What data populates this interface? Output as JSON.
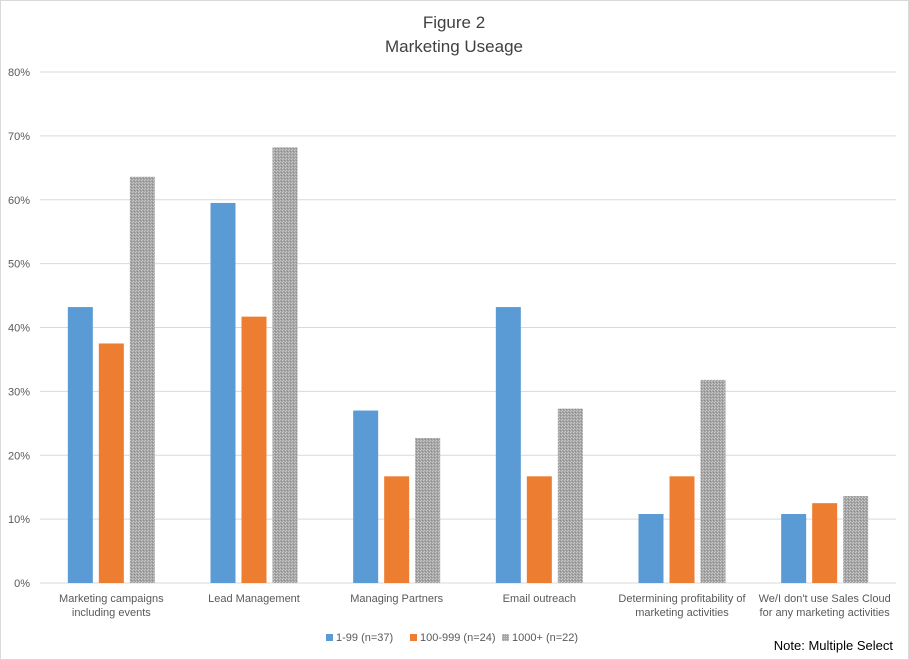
{
  "chart_data": {
    "type": "bar",
    "title": [
      "Figure 2",
      "Marketing Useage"
    ],
    "categories": [
      [
        "Marketing campaigns",
        "including events"
      ],
      [
        "Lead Management"
      ],
      [
        "Managing Partners"
      ],
      [
        "Email outreach"
      ],
      [
        "Determining profitability of",
        "marketing activities"
      ],
      [
        "We/I don't use Sales Cloud",
        "for any marketing activities"
      ]
    ],
    "series": [
      {
        "name": "1-99 (n=37)",
        "color": "#5b9bd5",
        "values": [
          43.2,
          59.5,
          27.0,
          43.2,
          10.8,
          10.8
        ]
      },
      {
        "name": "100-999 (n=24)",
        "color": "#ed7d31",
        "values": [
          37.5,
          41.7,
          16.7,
          16.7,
          16.7,
          12.5
        ]
      },
      {
        "name": "1000+ (n=22)",
        "color": "#a5a5a5",
        "pattern": true,
        "values": [
          63.6,
          68.2,
          22.7,
          27.3,
          31.8,
          13.6
        ]
      }
    ],
    "ylim": [
      0,
      80
    ],
    "yticks": [
      "0%",
      "10%",
      "20%",
      "30%",
      "40%",
      "50%",
      "60%",
      "70%",
      "80%"
    ],
    "grid": true,
    "legend": "bottom-center",
    "note": "Note: Multiple Select"
  }
}
